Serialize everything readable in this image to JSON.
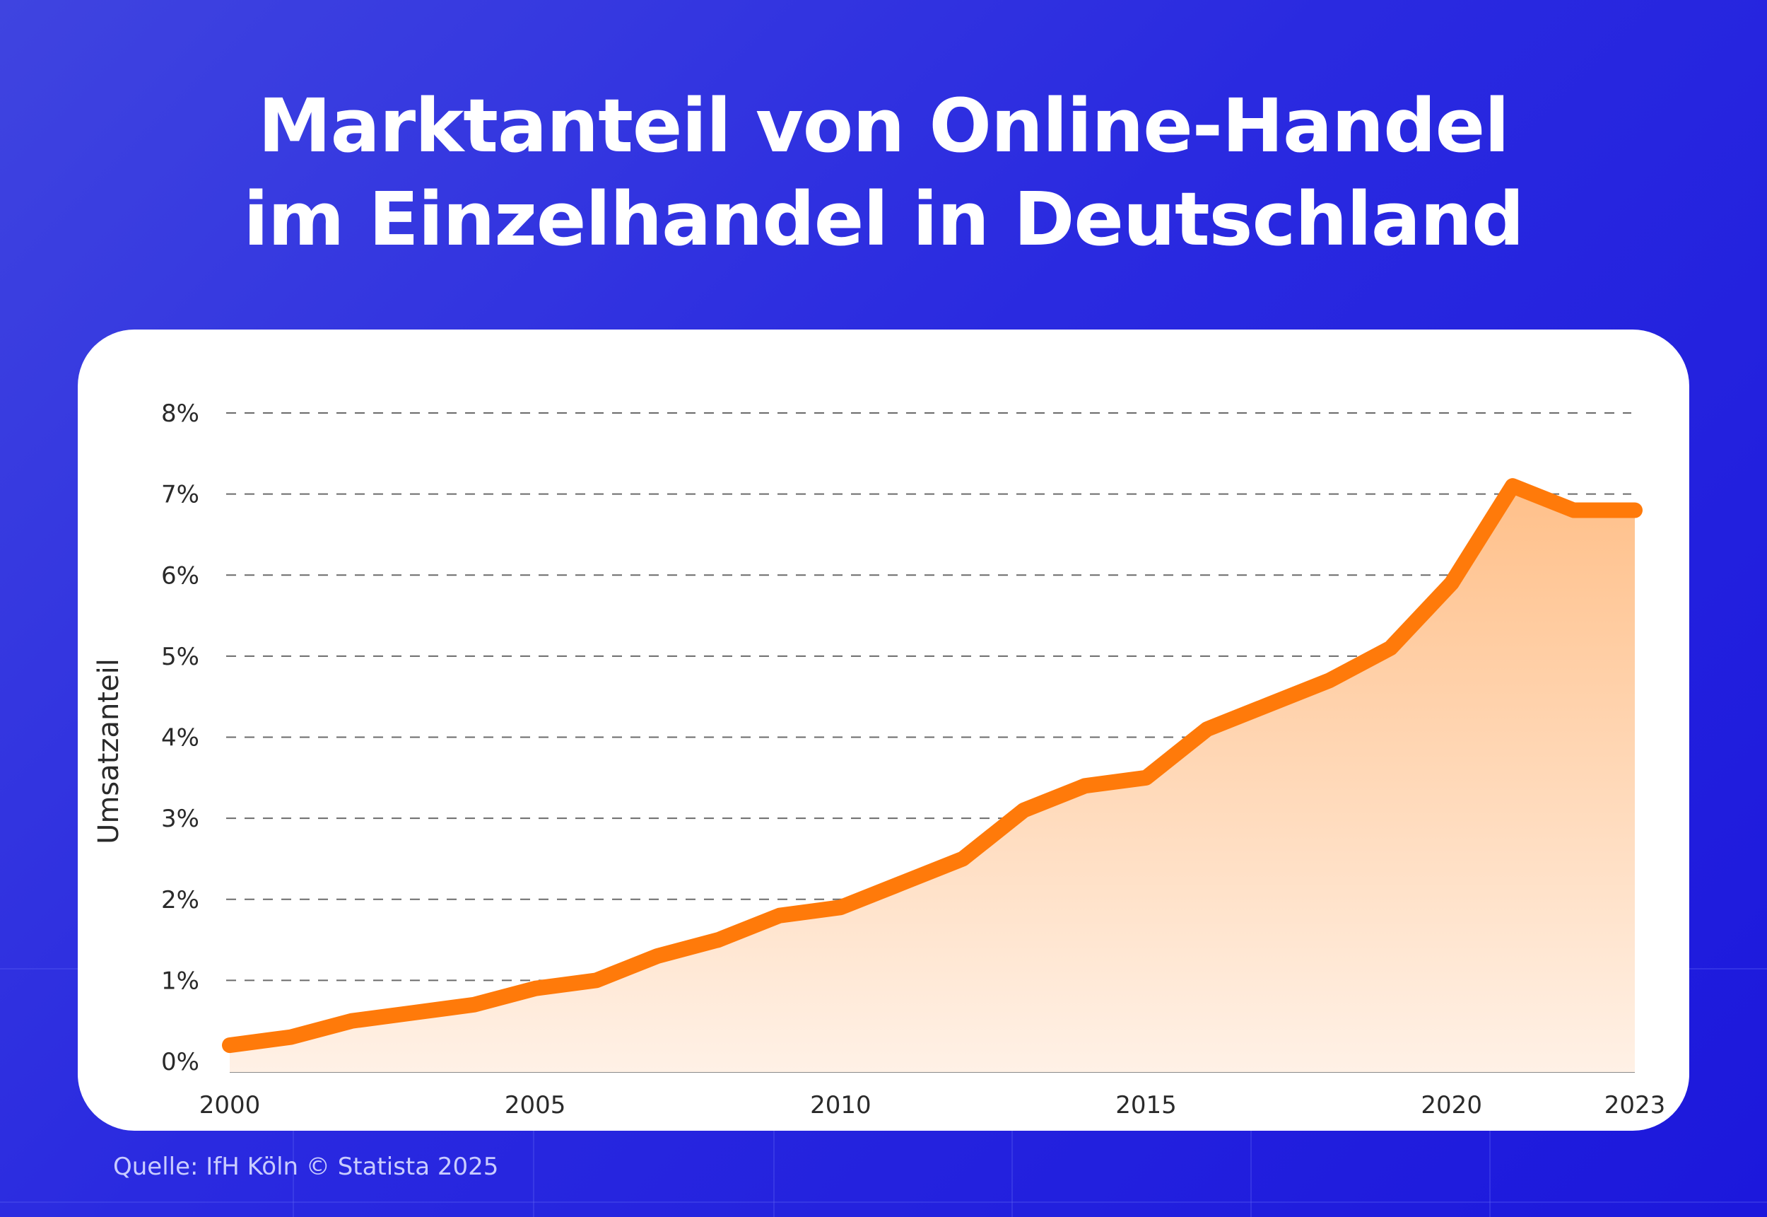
{
  "header": {
    "title_line1": "Marktanteil von Online-Handel",
    "title_line2": "im Einzelhandel in Deutschland"
  },
  "footer": {
    "source": "Quelle: IfH Köln © Statista 2025"
  },
  "colors": {
    "background": "#2a2ae0",
    "line": "#ff7a0a",
    "area_top": "#ffc08a",
    "area_bottom": "#fff1e6",
    "grid": "#6b6b6b"
  },
  "chart_data": {
    "type": "area",
    "ylabel": "Umsatzanteil",
    "xlabel": "",
    "ylim": [
      0,
      8
    ],
    "xlim": [
      2000,
      2023
    ],
    "y_ticks": [
      "0%",
      "1%",
      "2%",
      "3%",
      "4%",
      "5%",
      "6%",
      "7%",
      "8%"
    ],
    "x_ticks": [
      "2000",
      "2005",
      "2010",
      "2015",
      "2020",
      "2023"
    ],
    "grid": "horizontal-dashed",
    "x": [
      2000,
      2001,
      2002,
      2003,
      2004,
      2005,
      2006,
      2007,
      2008,
      2009,
      2010,
      2011,
      2012,
      2013,
      2014,
      2015,
      2016,
      2017,
      2018,
      2019,
      2020,
      2021,
      2022,
      2023
    ],
    "series": [
      {
        "values": [
          0.2,
          0.3,
          0.5,
          0.6,
          0.7,
          0.9,
          1.0,
          1.3,
          1.5,
          1.8,
          1.9,
          2.2,
          2.5,
          3.1,
          3.4,
          3.5,
          4.1,
          4.4,
          4.7,
          5.1,
          5.9,
          7.1,
          6.8,
          6.8
        ]
      }
    ]
  }
}
